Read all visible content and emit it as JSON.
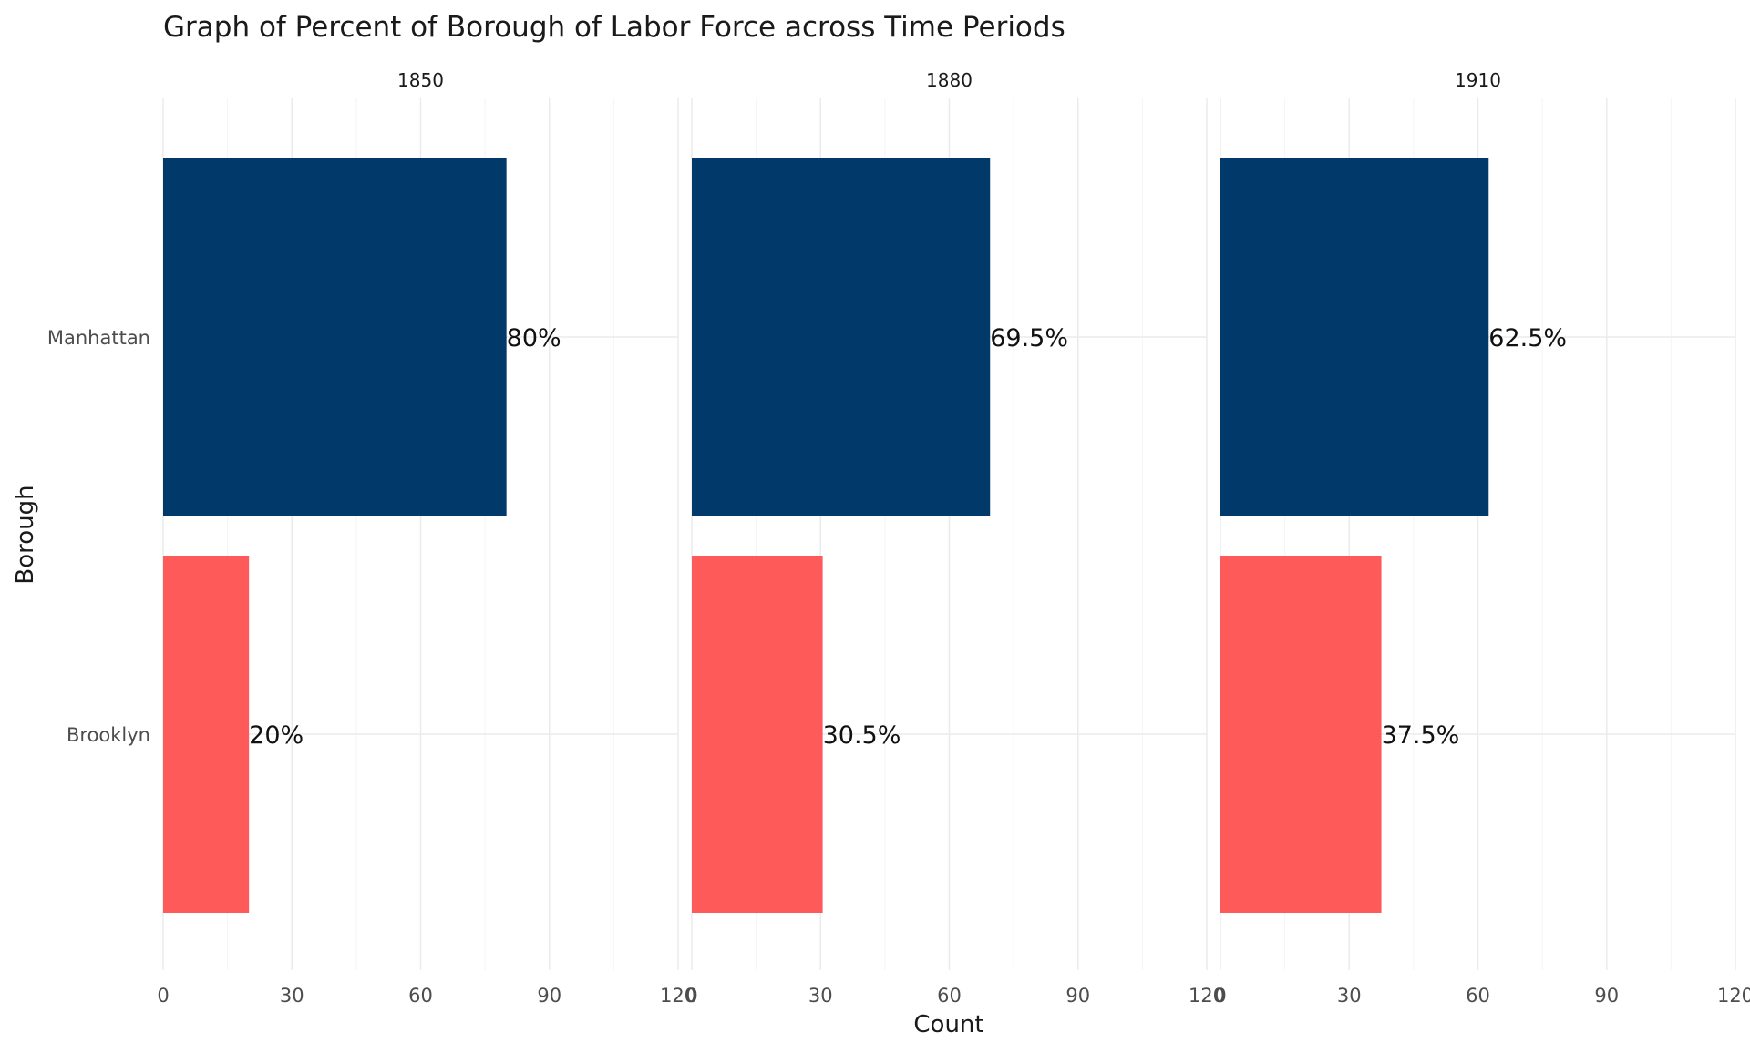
{
  "chart_data": {
    "type": "bar",
    "orientation": "horizontal",
    "title": "Graph of Percent of Borough of Labor Force across Time Periods",
    "xlabel": "Count",
    "ylabel": "Borough",
    "xlim": [
      0,
      120
    ],
    "x_ticks": [
      "0",
      "30",
      "60",
      "90",
      "120"
    ],
    "grid": true,
    "categories": [
      "Manhattan",
      "Brooklyn"
    ],
    "colors": {
      "Manhattan": "#02396b",
      "Brooklyn": "#fe5a5a"
    },
    "panels": [
      {
        "facet": "1850",
        "values": [
          80,
          20
        ],
        "labels": [
          "80%",
          "20%"
        ]
      },
      {
        "facet": "1880",
        "values": [
          69.5,
          30.5
        ],
        "labels": [
          "69.5%",
          "30.5%"
        ]
      },
      {
        "facet": "1910",
        "values": [
          62.5,
          37.5
        ],
        "labels": [
          "62.5%",
          "37.5%"
        ]
      }
    ]
  }
}
